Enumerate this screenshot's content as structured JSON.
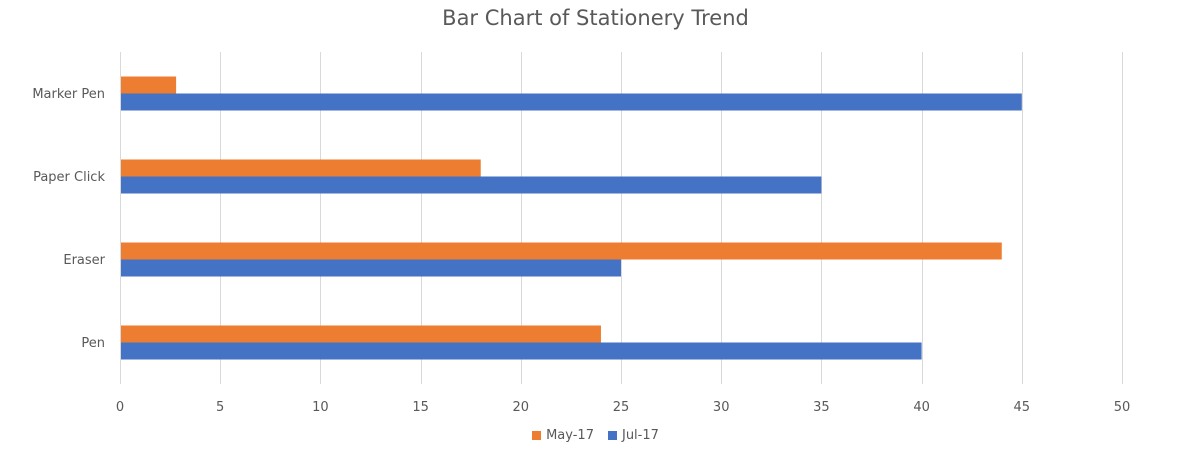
{
  "chart_data": {
    "type": "bar",
    "orientation": "horizontal",
    "title": "Bar Chart of Stationery Trend",
    "categories": [
      "Pen",
      "Eraser",
      "Paper Click",
      "Marker Pen"
    ],
    "series": [
      {
        "name": "May-17",
        "color": "#ED7D31",
        "values": [
          24,
          44,
          18,
          2.8
        ]
      },
      {
        "name": "Jul-17",
        "color": "#4472C4",
        "values": [
          40,
          25,
          35,
          45
        ]
      }
    ],
    "xlim": [
      0,
      50
    ],
    "xticks": [
      0,
      5,
      10,
      15,
      20,
      25,
      30,
      35,
      40,
      45,
      50
    ],
    "grid": true,
    "legend_position": "bottom"
  }
}
